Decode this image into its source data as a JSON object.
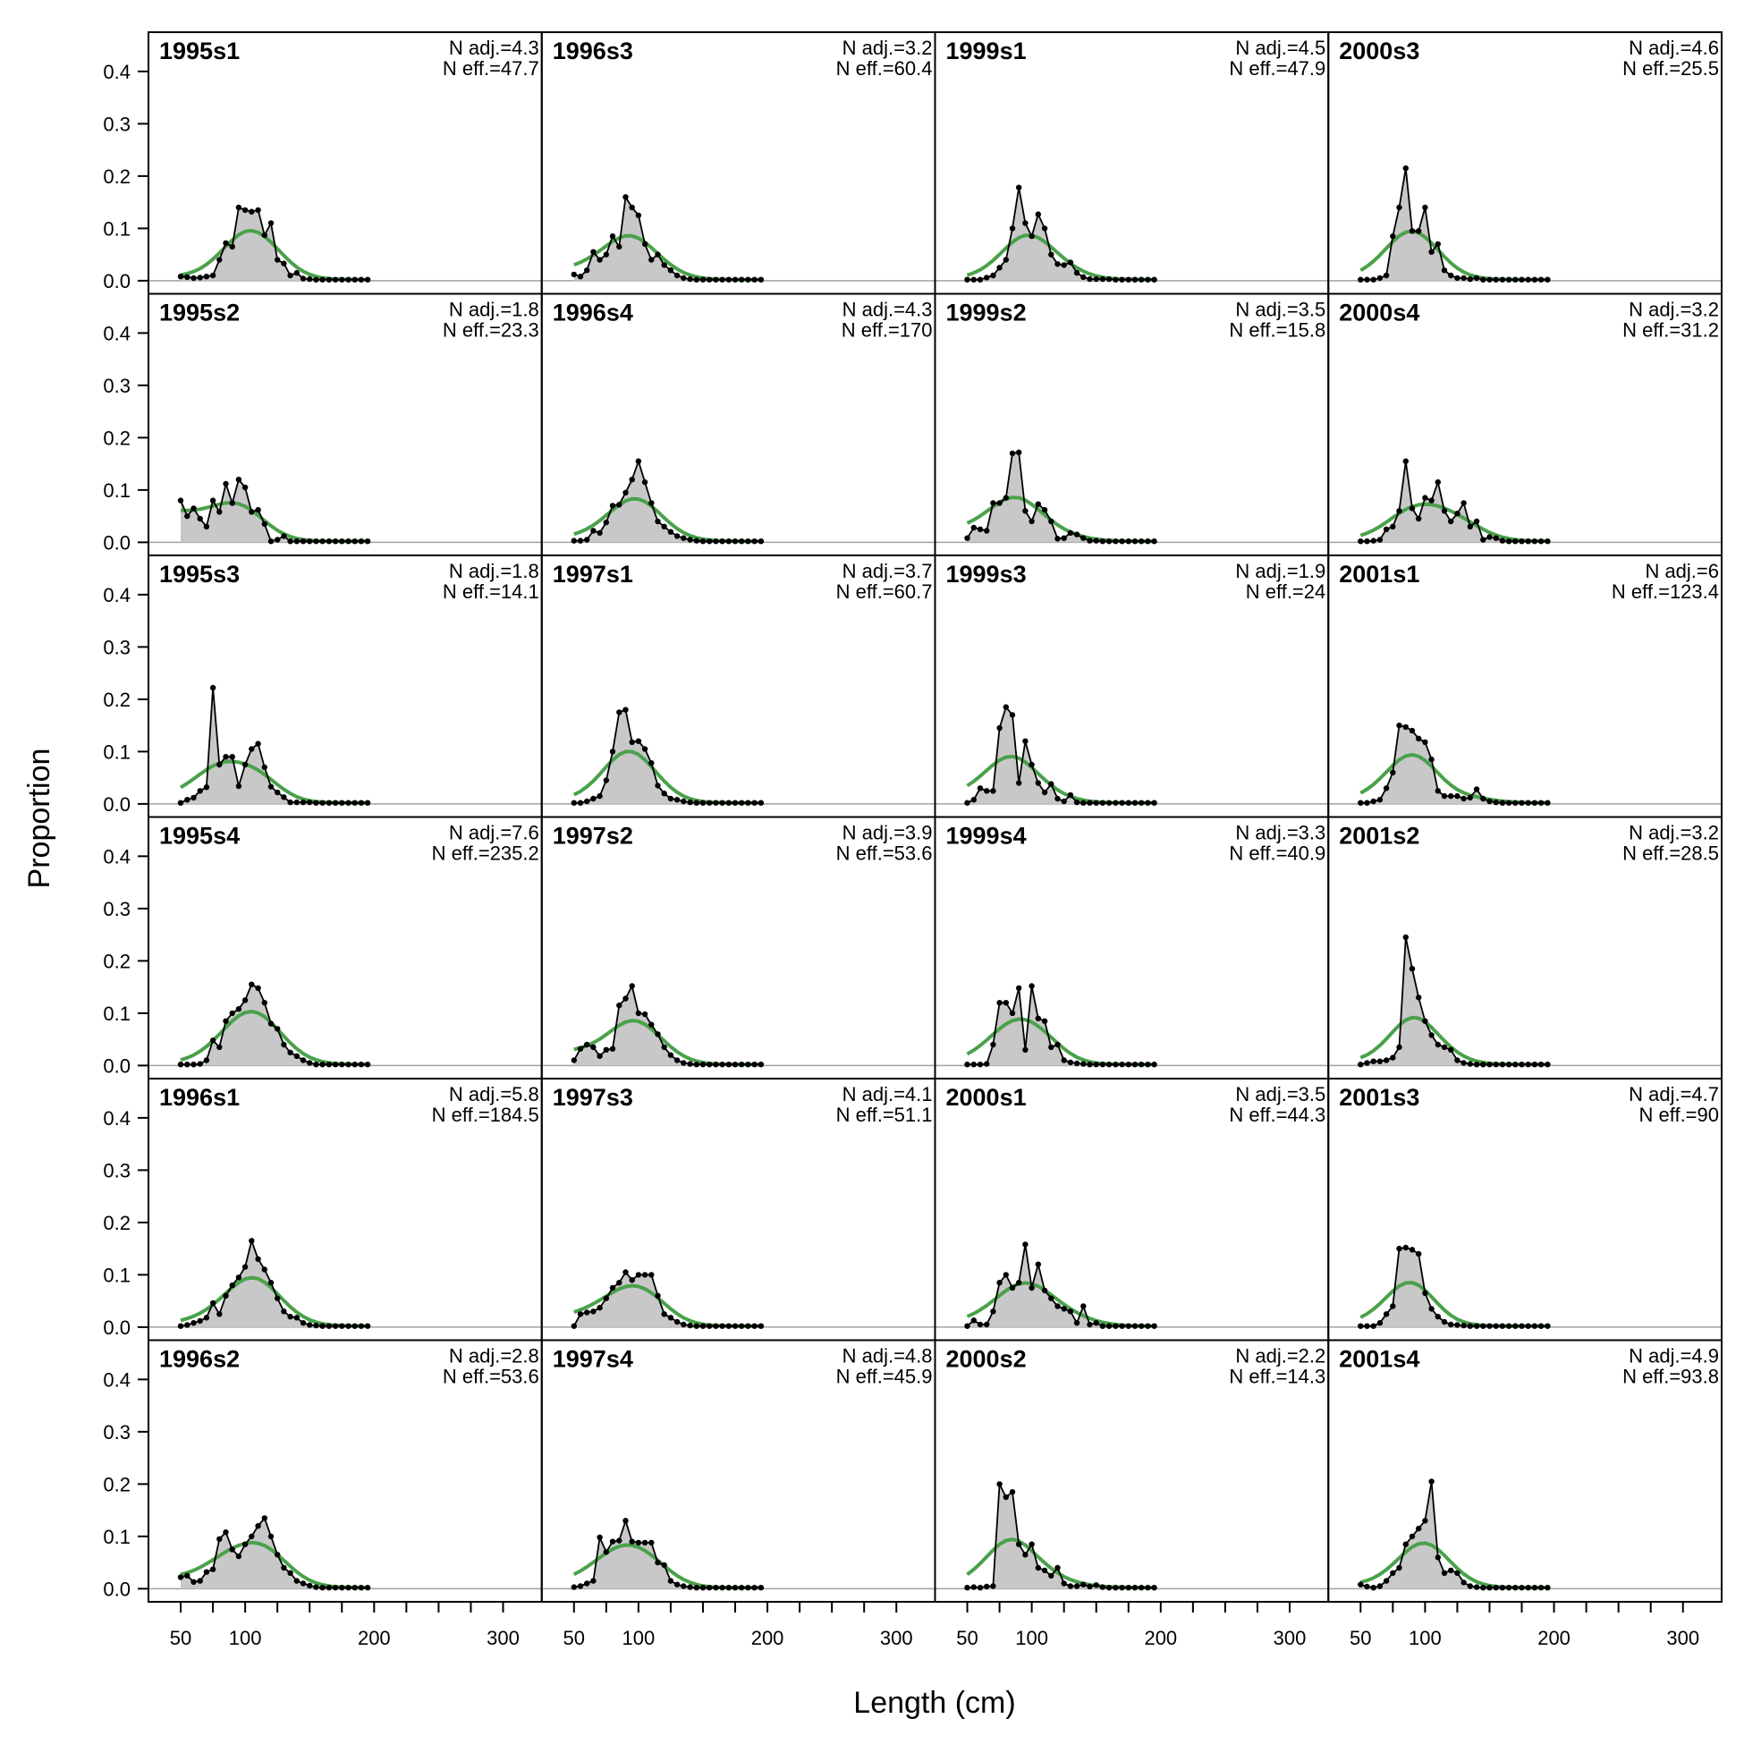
{
  "chart_data": {
    "type": "area",
    "xlabel": "Length (cm)",
    "ylabel": "Proportion",
    "xlim": [
      25,
      330
    ],
    "ylim": [
      -0.025,
      0.475
    ],
    "x_ticks": [
      50,
      100,
      200,
      300
    ],
    "x_minor_ticks": [
      50,
      75,
      100,
      125,
      150,
      175,
      200,
      225,
      250,
      275,
      300
    ],
    "y_ticks": [
      "0.0",
      "0.1",
      "0.2",
      "0.3",
      "0.4"
    ],
    "length_bins": [
      50,
      55,
      60,
      65,
      70,
      75,
      80,
      85,
      90,
      95,
      100,
      105,
      110,
      115,
      120,
      125,
      130,
      135,
      140,
      145,
      150,
      155,
      160,
      165,
      170,
      175,
      180,
      185,
      190,
      195,
      200,
      205,
      210,
      215,
      220,
      225,
      230,
      235,
      240,
      245,
      250,
      255,
      260,
      265,
      270,
      275,
      280,
      285,
      290,
      295,
      300,
      305,
      310,
      315,
      320
    ],
    "colors": {
      "observed_fill": "#c8c8c8",
      "observed_line": "#000000",
      "expected_line": "#4aa14a",
      "zero_line": "#a0a0a0"
    },
    "panels": [
      {
        "title": "1995s1",
        "n_adj": "N adj.=4.3",
        "n_eff": "N eff.=47.7",
        "observed": [
          0.008,
          0.007,
          0.005,
          0.006,
          0.008,
          0.01,
          0.04,
          0.072,
          0.065,
          0.14,
          0.135,
          0.132,
          0.135,
          0.087,
          0.11,
          0.04,
          0.033,
          0.01,
          0.015,
          0.004,
          0.003,
          0.002,
          0.002,
          0.002,
          0.002,
          0.002,
          0.002,
          0.002,
          0.002,
          0.002
        ]
      },
      {
        "title": "1995s2",
        "n_adj": "N adj.=1.8",
        "n_eff": "N eff.=23.3",
        "observed": [
          0.08,
          0.05,
          0.065,
          0.045,
          0.03,
          0.08,
          0.058,
          0.112,
          0.075,
          0.12,
          0.105,
          0.058,
          0.062,
          0.035,
          0.002,
          0.005,
          0.012,
          0.002,
          0.002,
          0.002,
          0.002,
          0.002,
          0.002,
          0.002,
          0.002,
          0.002,
          0.002,
          0.002,
          0.002,
          0.002
        ]
      },
      {
        "title": "1995s3",
        "n_adj": "N adj.=1.8",
        "n_eff": "N eff.=14.1",
        "observed": [
          0.002,
          0.008,
          0.012,
          0.025,
          0.032,
          0.222,
          0.075,
          0.09,
          0.09,
          0.034,
          0.075,
          0.105,
          0.115,
          0.07,
          0.033,
          0.022,
          0.013,
          0.003,
          0.003,
          0.003,
          0.003,
          0.002,
          0.002,
          0.002,
          0.002,
          0.002,
          0.002,
          0.002,
          0.002,
          0.002
        ]
      },
      {
        "title": "1995s4",
        "n_adj": "N adj.=7.6",
        "n_eff": "N eff.=235.2",
        "observed": [
          0.002,
          0.002,
          0.002,
          0.003,
          0.01,
          0.048,
          0.035,
          0.085,
          0.1,
          0.108,
          0.125,
          0.155,
          0.148,
          0.12,
          0.08,
          0.07,
          0.04,
          0.025,
          0.018,
          0.01,
          0.005,
          0.002,
          0.002,
          0.002,
          0.002,
          0.002,
          0.002,
          0.002,
          0.002,
          0.002
        ]
      },
      {
        "title": "1996s1",
        "n_adj": "N adj.=5.8",
        "n_eff": "N eff.=184.5",
        "observed": [
          0.002,
          0.004,
          0.008,
          0.012,
          0.018,
          0.046,
          0.025,
          0.06,
          0.08,
          0.095,
          0.115,
          0.165,
          0.13,
          0.11,
          0.085,
          0.055,
          0.03,
          0.02,
          0.018,
          0.008,
          0.004,
          0.003,
          0.002,
          0.002,
          0.002,
          0.002,
          0.002,
          0.002,
          0.002,
          0.002
        ]
      },
      {
        "title": "1996s2",
        "n_adj": "N adj.=2.8",
        "n_eff": "N eff.=53.6",
        "observed": [
          0.022,
          0.025,
          0.013,
          0.015,
          0.032,
          0.037,
          0.095,
          0.108,
          0.075,
          0.062,
          0.085,
          0.1,
          0.12,
          0.135,
          0.1,
          0.065,
          0.04,
          0.03,
          0.015,
          0.01,
          0.006,
          0.003,
          0.002,
          0.002,
          0.002,
          0.002,
          0.002,
          0.002,
          0.002,
          0.002
        ]
      },
      {
        "title": "1996s3",
        "n_adj": "N adj.=3.2",
        "n_eff": "N eff.=60.4",
        "observed": [
          0.012,
          0.008,
          0.02,
          0.055,
          0.04,
          0.05,
          0.085,
          0.065,
          0.16,
          0.14,
          0.125,
          0.07,
          0.04,
          0.05,
          0.03,
          0.02,
          0.01,
          0.005,
          0.003,
          0.002,
          0.002,
          0.002,
          0.002,
          0.002,
          0.002,
          0.002,
          0.002,
          0.002,
          0.002,
          0.002
        ]
      },
      {
        "title": "1996s4",
        "n_adj": "N adj.=4.3",
        "n_eff": "N eff.=170",
        "observed": [
          0.003,
          0.003,
          0.005,
          0.022,
          0.018,
          0.038,
          0.07,
          0.072,
          0.095,
          0.12,
          0.155,
          0.115,
          0.075,
          0.04,
          0.03,
          0.02,
          0.012,
          0.008,
          0.005,
          0.003,
          0.002,
          0.002,
          0.002,
          0.002,
          0.002,
          0.002,
          0.002,
          0.002,
          0.002,
          0.002
        ]
      },
      {
        "title": "1997s1",
        "n_adj": "N adj.=3.7",
        "n_eff": "N eff.=60.7",
        "observed": [
          0.002,
          0.002,
          0.005,
          0.01,
          0.015,
          0.045,
          0.1,
          0.175,
          0.18,
          0.118,
          0.12,
          0.105,
          0.078,
          0.035,
          0.02,
          0.01,
          0.008,
          0.005,
          0.003,
          0.002,
          0.002,
          0.002,
          0.002,
          0.002,
          0.002,
          0.002,
          0.002,
          0.002,
          0.002,
          0.002
        ]
      },
      {
        "title": "1997s2",
        "n_adj": "N adj.=3.9",
        "n_eff": "N eff.=53.6",
        "observed": [
          0.01,
          0.032,
          0.04,
          0.035,
          0.018,
          0.03,
          0.032,
          0.115,
          0.128,
          0.152,
          0.1,
          0.098,
          0.078,
          0.06,
          0.035,
          0.02,
          0.01,
          0.005,
          0.003,
          0.002,
          0.002,
          0.002,
          0.002,
          0.002,
          0.002,
          0.002,
          0.002,
          0.002,
          0.002,
          0.002
        ]
      },
      {
        "title": "1997s3",
        "n_adj": "N adj.=4.1",
        "n_eff": "N eff.=51.1",
        "observed": [
          0.002,
          0.025,
          0.028,
          0.03,
          0.037,
          0.055,
          0.075,
          0.085,
          0.105,
          0.09,
          0.1,
          0.1,
          0.1,
          0.06,
          0.025,
          0.018,
          0.01,
          0.005,
          0.003,
          0.002,
          0.002,
          0.002,
          0.002,
          0.002,
          0.002,
          0.002,
          0.002,
          0.002,
          0.002,
          0.002
        ]
      },
      {
        "title": "1997s4",
        "n_adj": "N adj.=4.8",
        "n_eff": "N eff.=45.9",
        "observed": [
          0.003,
          0.005,
          0.01,
          0.015,
          0.098,
          0.07,
          0.09,
          0.092,
          0.13,
          0.09,
          0.088,
          0.088,
          0.088,
          0.05,
          0.045,
          0.015,
          0.008,
          0.005,
          0.003,
          0.002,
          0.002,
          0.002,
          0.002,
          0.002,
          0.002,
          0.002,
          0.002,
          0.002,
          0.002,
          0.002
        ]
      },
      {
        "title": "1999s1",
        "n_adj": "N adj.=4.5",
        "n_eff": "N eff.=47.9",
        "observed": [
          0.002,
          0.002,
          0.002,
          0.006,
          0.01,
          0.025,
          0.04,
          0.1,
          0.178,
          0.11,
          0.085,
          0.127,
          0.1,
          0.05,
          0.032,
          0.03,
          0.035,
          0.015,
          0.007,
          0.003,
          0.003,
          0.003,
          0.003,
          0.002,
          0.002,
          0.002,
          0.002,
          0.002,
          0.002,
          0.002
        ]
      },
      {
        "title": "1999s2",
        "n_adj": "N adj.=3.5",
        "n_eff": "N eff.=15.8",
        "observed": [
          0.008,
          0.028,
          0.025,
          0.022,
          0.075,
          0.075,
          0.085,
          0.17,
          0.172,
          0.06,
          0.04,
          0.073,
          0.062,
          0.04,
          0.007,
          0.008,
          0.018,
          0.015,
          0.008,
          0.003,
          0.003,
          0.002,
          0.002,
          0.002,
          0.002,
          0.002,
          0.002,
          0.002,
          0.002,
          0.002
        ]
      },
      {
        "title": "1999s3",
        "n_adj": "N adj.=1.9",
        "n_eff": "N eff.=24",
        "observed": [
          0.002,
          0.008,
          0.03,
          0.025,
          0.025,
          0.145,
          0.185,
          0.17,
          0.04,
          0.12,
          0.075,
          0.04,
          0.022,
          0.038,
          0.01,
          0.005,
          0.017,
          0.003,
          0.002,
          0.002,
          0.002,
          0.002,
          0.002,
          0.002,
          0.002,
          0.002,
          0.002,
          0.002,
          0.002,
          0.002
        ]
      },
      {
        "title": "1999s4",
        "n_adj": "N adj.=3.3",
        "n_eff": "N eff.=40.9",
        "observed": [
          0.002,
          0.002,
          0.002,
          0.003,
          0.04,
          0.12,
          0.12,
          0.1,
          0.148,
          0.03,
          0.152,
          0.09,
          0.085,
          0.035,
          0.04,
          0.01,
          0.006,
          0.004,
          0.003,
          0.002,
          0.002,
          0.002,
          0.002,
          0.002,
          0.002,
          0.002,
          0.002,
          0.002,
          0.002,
          0.002
        ]
      },
      {
        "title": "2000s1",
        "n_adj": "N adj.=3.5",
        "n_eff": "N eff.=44.3",
        "observed": [
          0.002,
          0.013,
          0.005,
          0.005,
          0.03,
          0.085,
          0.1,
          0.075,
          0.085,
          0.158,
          0.075,
          0.12,
          0.07,
          0.055,
          0.04,
          0.035,
          0.03,
          0.008,
          0.04,
          0.005,
          0.008,
          0.002,
          0.002,
          0.002,
          0.002,
          0.002,
          0.002,
          0.002,
          0.002,
          0.002
        ]
      },
      {
        "title": "2000s2",
        "n_adj": "N adj.=2.2",
        "n_eff": "N eff.=14.3",
        "observed": [
          0.002,
          0.003,
          0.002,
          0.004,
          0.005,
          0.2,
          0.175,
          0.185,
          0.085,
          0.065,
          0.085,
          0.04,
          0.035,
          0.025,
          0.04,
          0.01,
          0.005,
          0.005,
          0.008,
          0.004,
          0.007,
          0.003,
          0.002,
          0.002,
          0.002,
          0.002,
          0.002,
          0.002,
          0.002,
          0.002
        ]
      },
      {
        "title": "2000s3",
        "n_adj": "N adj.=4.6",
        "n_eff": "N eff.=25.5",
        "observed": [
          0.002,
          0.002,
          0.002,
          0.005,
          0.01,
          0.085,
          0.14,
          0.215,
          0.095,
          0.095,
          0.14,
          0.055,
          0.07,
          0.02,
          0.01,
          0.005,
          0.005,
          0.003,
          0.005,
          0.002,
          0.002,
          0.002,
          0.002,
          0.002,
          0.002,
          0.002,
          0.002,
          0.002,
          0.002,
          0.002
        ]
      },
      {
        "title": "2000s4",
        "n_adj": "N adj.=3.2",
        "n_eff": "N eff.=31.2",
        "observed": [
          0.002,
          0.002,
          0.003,
          0.005,
          0.025,
          0.03,
          0.06,
          0.155,
          0.065,
          0.045,
          0.085,
          0.08,
          0.115,
          0.06,
          0.04,
          0.055,
          0.075,
          0.03,
          0.04,
          0.005,
          0.01,
          0.008,
          0.003,
          0.002,
          0.002,
          0.002,
          0.002,
          0.002,
          0.002,
          0.002
        ]
      },
      {
        "title": "2001s1",
        "n_adj": "N adj.=6",
        "n_eff": "N eff.=123.4",
        "observed": [
          0.002,
          0.002,
          0.005,
          0.008,
          0.03,
          0.06,
          0.15,
          0.147,
          0.14,
          0.125,
          0.118,
          0.085,
          0.025,
          0.015,
          0.015,
          0.015,
          0.01,
          0.012,
          0.028,
          0.01,
          0.005,
          0.003,
          0.002,
          0.002,
          0.002,
          0.002,
          0.002,
          0.002,
          0.002,
          0.002
        ]
      },
      {
        "title": "2001s2",
        "n_adj": "N adj.=3.2",
        "n_eff": "N eff.=28.5",
        "observed": [
          0.002,
          0.005,
          0.008,
          0.008,
          0.01,
          0.015,
          0.035,
          0.245,
          0.185,
          0.13,
          0.085,
          0.058,
          0.04,
          0.035,
          0.03,
          0.01,
          0.005,
          0.003,
          0.002,
          0.002,
          0.002,
          0.002,
          0.002,
          0.002,
          0.002,
          0.002,
          0.002,
          0.002,
          0.002,
          0.002
        ]
      },
      {
        "title": "2001s3",
        "n_adj": "N adj.=4.7",
        "n_eff": "N eff.=90",
        "observed": [
          0.002,
          0.002,
          0.002,
          0.008,
          0.025,
          0.04,
          0.15,
          0.152,
          0.148,
          0.14,
          0.065,
          0.035,
          0.02,
          0.01,
          0.005,
          0.004,
          0.003,
          0.002,
          0.002,
          0.002,
          0.002,
          0.002,
          0.002,
          0.002,
          0.002,
          0.002,
          0.002,
          0.002,
          0.002,
          0.002
        ]
      },
      {
        "title": "2001s4",
        "n_adj": "N adj.=4.9",
        "n_eff": "N eff.=93.8",
        "observed": [
          0.008,
          0.004,
          0.002,
          0.005,
          0.015,
          0.03,
          0.04,
          0.085,
          0.1,
          0.115,
          0.13,
          0.205,
          0.06,
          0.03,
          0.035,
          0.03,
          0.012,
          0.005,
          0.003,
          0.002,
          0.002,
          0.002,
          0.002,
          0.002,
          0.002,
          0.002,
          0.002,
          0.002,
          0.002,
          0.002
        ]
      }
    ]
  }
}
